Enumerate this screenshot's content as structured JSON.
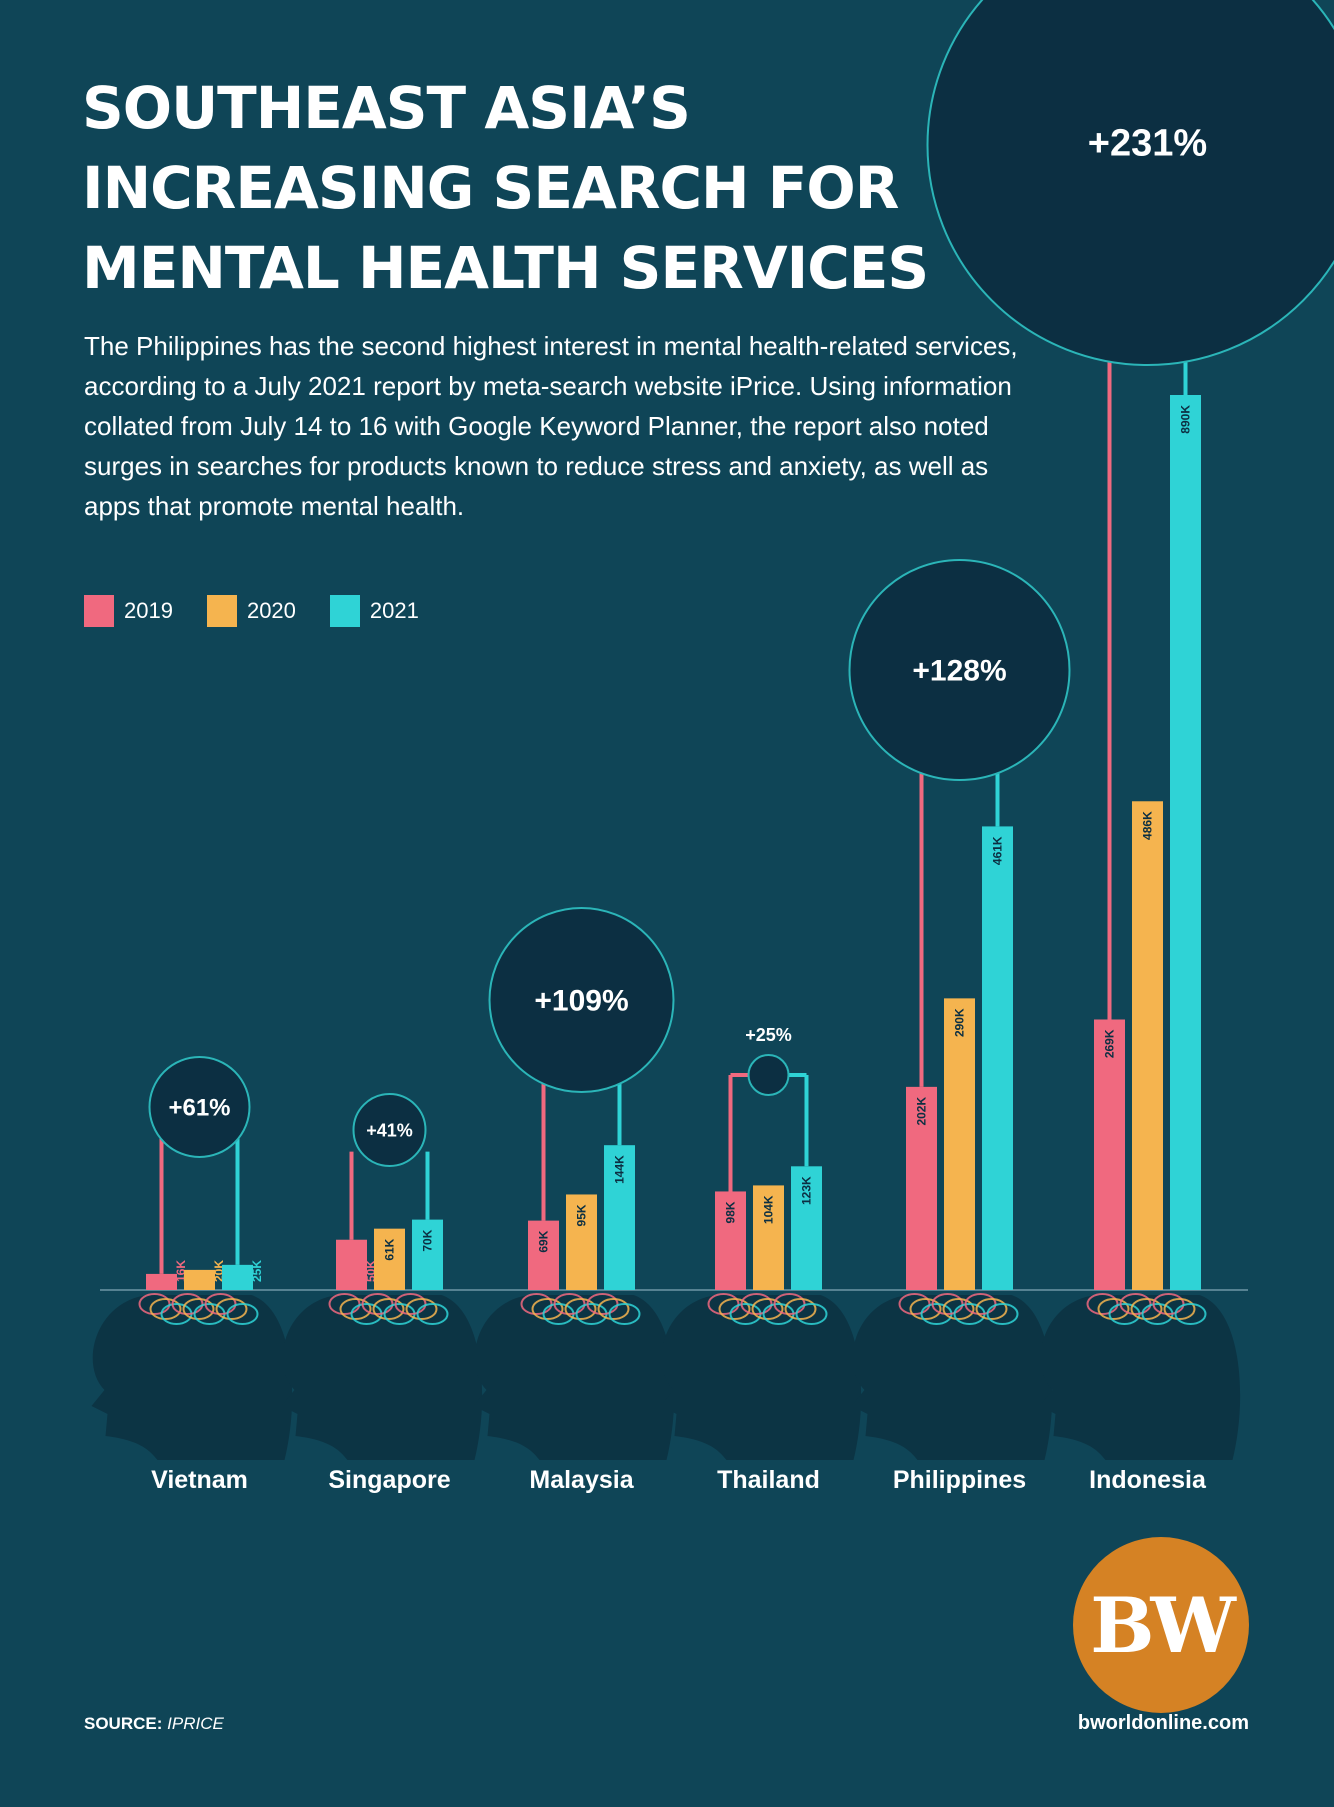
{
  "title": "SOUTHEAST ASIA’S INCREASING SEARCH FOR MENTAL HEALTH SERVICES",
  "subtitle": "The Philippines has the second highest interest in mental health-related services, according to a July 2021 report by meta-search website iPrice. Using information collated from July 14 to 16 with Google Keyword Planner, the report also noted surges in searches for products known to reduce stress and anxiety, as well as apps that promote mental health.",
  "source_label": "SOURCE:",
  "source_value": "IPRICE",
  "website": "bworldonline.com",
  "logo_text": "BW",
  "colors": {
    "background": "#0f4557",
    "y2019": "#f0697f",
    "y2020": "#f5b44f",
    "y2021": "#2fd3d6",
    "bubble": "#0c2f42",
    "ring": "#2bb5b8",
    "logo": "#d58224"
  },
  "chart_data": {
    "type": "bar",
    "categories": [
      "Vietnam",
      "Singapore",
      "Malaysia",
      "Thailand",
      "Philippines",
      "Indonesia"
    ],
    "series": [
      {
        "name": "2019",
        "values": [
          16,
          50,
          69,
          98,
          202,
          269
        ],
        "labels": [
          "16K",
          "50K",
          "69K",
          "98K",
          "202K",
          "269K"
        ]
      },
      {
        "name": "2020",
        "values": [
          20,
          61,
          95,
          104,
          290,
          486
        ],
        "labels": [
          "20K",
          "61K",
          "95K",
          "104K",
          "290K",
          "486K"
        ]
      },
      {
        "name": "2021",
        "values": [
          25,
          70,
          144,
          123,
          461,
          890
        ],
        "labels": [
          "25K",
          "70K",
          "144K",
          "123K",
          "461K",
          "890K"
        ]
      }
    ],
    "growth_labels": [
      "+61%",
      "+41%",
      "+109%",
      "+25%",
      "+128%",
      "+231%"
    ],
    "legend": [
      "2019",
      "2020",
      "2021"
    ],
    "legend_position": "top-left",
    "unit": "K",
    "ylim": [
      0,
      890
    ],
    "grid": false
  }
}
